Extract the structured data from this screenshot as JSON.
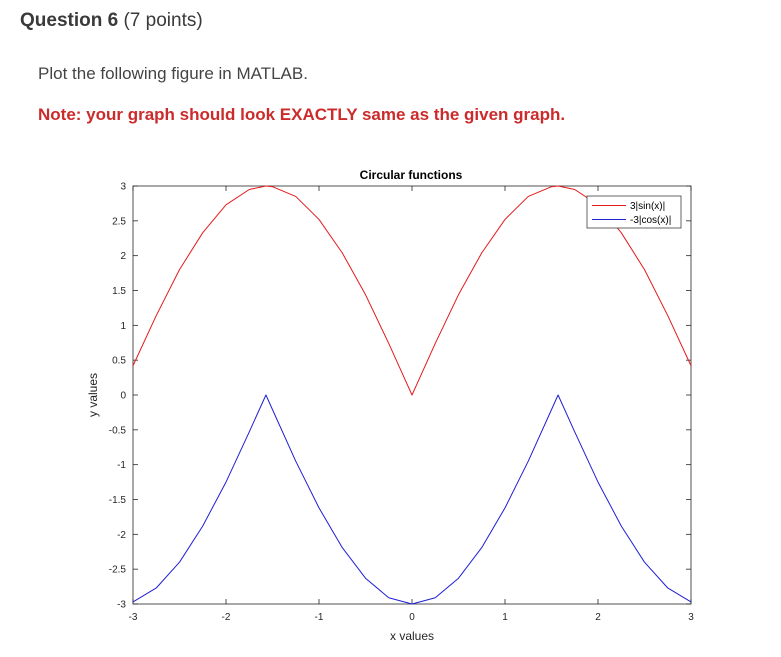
{
  "question": {
    "title": "Question 6",
    "points": "(7 points)"
  },
  "instruction": "Plot the following figure in MATLAB.",
  "note": "Note: your graph should look EXACTLY same as the given graph.",
  "colors": {
    "note": "#cc2b2b",
    "series_sin": "#e41a1c",
    "series_cos": "#1f1fd6"
  },
  "chart_data": {
    "type": "line",
    "title": "Circular functions",
    "xlabel": "x values",
    "ylabel": "y values",
    "xlim": [
      -3,
      3
    ],
    "ylim": [
      -3,
      3
    ],
    "x_ticks": [
      "-3",
      "-2",
      "-1",
      "0",
      "1",
      "2",
      "3"
    ],
    "x_tick_values": [
      -3,
      -2,
      -1,
      0,
      1,
      2,
      3
    ],
    "y_ticks": [
      "3",
      "2.5",
      "2",
      "1.5",
      "1",
      "0.5",
      "0",
      "-0.5",
      "-1",
      "-1.5",
      "-2",
      "-2.5",
      "-3"
    ],
    "y_tick_values": [
      3,
      2.5,
      2,
      1.5,
      1,
      0.5,
      0,
      -0.5,
      -1,
      -1.5,
      -2,
      -2.5,
      -3
    ],
    "grid": false,
    "legend_position": "top-right",
    "series": [
      {
        "name": "3|sin(x)|",
        "color": "#e41a1c",
        "x": [
          -3,
          -2.75,
          -2.5,
          -2.25,
          -2,
          -1.75,
          -1.5708,
          -1.5,
          -1.25,
          -1,
          -0.75,
          -0.5,
          -0.25,
          0,
          0.25,
          0.5,
          0.75,
          1,
          1.25,
          1.5,
          1.5708,
          1.75,
          2,
          2.25,
          2.5,
          2.75,
          3
        ],
        "y": [
          0.42,
          1.14,
          1.8,
          2.33,
          2.73,
          2.95,
          3,
          2.99,
          2.85,
          2.52,
          2.04,
          1.44,
          0.74,
          0,
          0.74,
          1.44,
          2.04,
          2.52,
          2.85,
          2.99,
          3,
          2.95,
          2.73,
          2.33,
          1.8,
          1.14,
          0.42
        ]
      },
      {
        "name": "-3|cos(x)|",
        "color": "#1f1fd6",
        "x": [
          -3,
          -2.75,
          -2.5,
          -2.25,
          -2,
          -1.75,
          -1.5708,
          -1.5,
          -1.25,
          -1,
          -0.75,
          -0.5,
          -0.25,
          0,
          0.25,
          0.5,
          0.75,
          1,
          1.25,
          1.5,
          1.5708,
          1.75,
          2,
          2.25,
          2.5,
          2.75,
          3
        ],
        "y": [
          -2.97,
          -2.77,
          -2.4,
          -1.88,
          -1.25,
          -0.53,
          0,
          -0.21,
          -0.95,
          -1.62,
          -2.19,
          -2.63,
          -2.91,
          -3,
          -2.91,
          -2.63,
          -2.19,
          -1.62,
          -0.95,
          -0.21,
          0,
          -0.53,
          -1.25,
          -1.88,
          -2.4,
          -2.77,
          -2.97
        ]
      }
    ]
  }
}
